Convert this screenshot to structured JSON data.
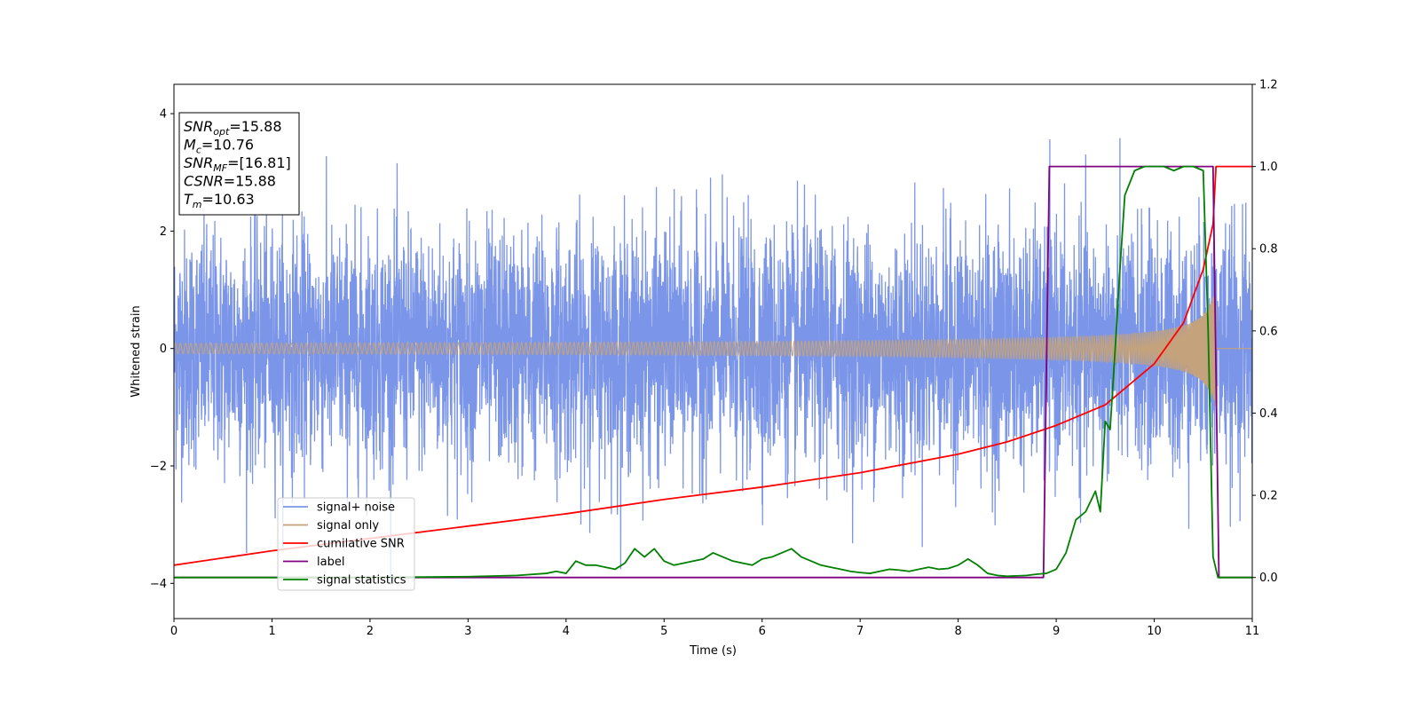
{
  "chart_data": {
    "type": "line",
    "xlabel": "Time (s)",
    "ylabel": "Whitened strain",
    "xlim": [
      0,
      11
    ],
    "ylim": [
      -4.6,
      4.5
    ],
    "y2lim": [
      -0.1,
      1.2
    ],
    "xticks": [
      0,
      1,
      2,
      3,
      4,
      5,
      6,
      7,
      8,
      9,
      10,
      11
    ],
    "yticks": [
      -4,
      -2,
      0,
      2,
      4
    ],
    "y2ticks": [
      0.0,
      0.2,
      0.4,
      0.6,
      0.8,
      1.0,
      1.2
    ],
    "xtick_labels": [
      "0",
      "1",
      "2",
      "3",
      "4",
      "5",
      "6",
      "7",
      "8",
      "9",
      "10",
      "11"
    ],
    "ytick_labels": [
      "−4",
      "−2",
      "0",
      "2",
      "4"
    ],
    "y2tick_labels": [
      "0.0",
      "0.2",
      "0.4",
      "0.6",
      "0.8",
      "1.0",
      "1.2"
    ],
    "grid": false,
    "legend_placement": "lower-left",
    "info_box": {
      "lines": [
        {
          "sym": "SNR",
          "sub": "opt",
          "value": "=15.88"
        },
        {
          "sym": "M",
          "sub": "c",
          "value": "=10.76"
        },
        {
          "sym": "SNR",
          "sub": "MF",
          "value": "=[16.81]"
        },
        {
          "sym": "CSNR",
          "sub": "",
          "value": "=15.88"
        },
        {
          "sym": "T",
          "sub": "m",
          "value": "=10.63"
        }
      ]
    },
    "series": [
      {
        "name": "signal+ noise",
        "axis": "left",
        "color": "#7b95e8",
        "kind": "noise",
        "typical_amplitude": 2.4,
        "peak_amplitude": 3.9
      },
      {
        "name": "signal only",
        "axis": "left",
        "color": "#c4a27b",
        "kind": "chirp",
        "amplitude_start": 0.03,
        "amplitude_end": 1.15,
        "merger_time": 10.63
      },
      {
        "name": "cumilative SNR",
        "axis": "right",
        "color": "#ff0000",
        "x": [
          0,
          1,
          2,
          3,
          4,
          5,
          6,
          7,
          8,
          8.5,
          9,
          9.5,
          10,
          10.3,
          10.5,
          10.6,
          10.63,
          11
        ],
        "y": [
          0.03,
          0.065,
          0.095,
          0.125,
          0.155,
          0.19,
          0.22,
          0.255,
          0.3,
          0.33,
          0.37,
          0.42,
          0.52,
          0.62,
          0.75,
          0.86,
          1.0,
          1.0
        ]
      },
      {
        "name": "label",
        "axis": "right",
        "color": "#800080",
        "x": [
          0,
          8.87,
          8.93,
          10.6,
          10.66,
          11
        ],
        "y": [
          0,
          0,
          1,
          1,
          0,
          0
        ]
      },
      {
        "name": "signal statistics",
        "axis": "right",
        "color": "#008000",
        "x": [
          0,
          1,
          2,
          3,
          3.5,
          3.8,
          3.9,
          4.0,
          4.1,
          4.2,
          4.3,
          4.4,
          4.5,
          4.6,
          4.7,
          4.8,
          4.9,
          5.0,
          5.1,
          5.2,
          5.3,
          5.4,
          5.5,
          5.6,
          5.7,
          5.8,
          5.9,
          6.0,
          6.1,
          6.2,
          6.3,
          6.4,
          6.5,
          6.6,
          6.7,
          6.8,
          6.9,
          7.0,
          7.1,
          7.2,
          7.3,
          7.4,
          7.5,
          7.6,
          7.7,
          7.8,
          7.9,
          8.0,
          8.1,
          8.2,
          8.3,
          8.4,
          8.5,
          8.6,
          8.7,
          8.8,
          8.9,
          9.0,
          9.1,
          9.2,
          9.3,
          9.4,
          9.45,
          9.5,
          9.55,
          9.6,
          9.65,
          9.7,
          9.8,
          9.9,
          10.0,
          10.1,
          10.2,
          10.3,
          10.4,
          10.5,
          10.55,
          10.6,
          10.65,
          10.7,
          11
        ],
        "y": [
          0,
          0,
          0,
          0.002,
          0.005,
          0.01,
          0.015,
          0.01,
          0.04,
          0.03,
          0.03,
          0.025,
          0.02,
          0.035,
          0.07,
          0.05,
          0.07,
          0.04,
          0.03,
          0.035,
          0.04,
          0.045,
          0.06,
          0.05,
          0.04,
          0.035,
          0.03,
          0.045,
          0.05,
          0.06,
          0.07,
          0.05,
          0.04,
          0.03,
          0.025,
          0.02,
          0.015,
          0.012,
          0.01,
          0.015,
          0.02,
          0.018,
          0.015,
          0.02,
          0.025,
          0.02,
          0.022,
          0.03,
          0.045,
          0.03,
          0.01,
          0.005,
          0.003,
          0.004,
          0.005,
          0.008,
          0.01,
          0.02,
          0.06,
          0.14,
          0.16,
          0.21,
          0.16,
          0.38,
          0.36,
          0.55,
          0.75,
          0.93,
          0.99,
          1.0,
          1.0,
          1.0,
          0.99,
          1.0,
          1.0,
          0.99,
          0.6,
          0.05,
          0.0,
          0.0,
          0.0
        ]
      }
    ]
  }
}
